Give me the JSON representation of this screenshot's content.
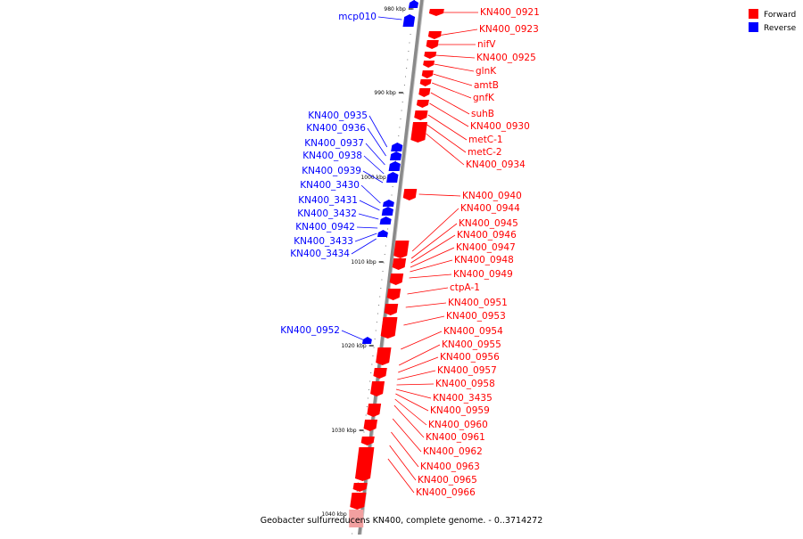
{
  "caption": "Geobacter sulfurreducens KN400, complete genome. - 0..3714272",
  "legend": [
    {
      "label": "Forward",
      "color": "#ff0000"
    },
    {
      "label": "Reverse",
      "color": "#0000ff"
    }
  ],
  "colors": {
    "forward": "#ff0000",
    "reverse": "#0000ff",
    "backbone": "#8a8a8a"
  },
  "ticks": [
    "980 kbp",
    "990 kbp",
    "1000 kbp",
    "1010 kbp",
    "1020 kbp",
    "1030 kbp",
    "1040 kbp"
  ],
  "forward_labels": [
    "KN400_0921",
    "KN400_0923",
    "nifV",
    "KN400_0925",
    "glnK",
    "amtB",
    "gnfK",
    "suhB",
    "KN400_0930",
    "metC-1",
    "metC-2",
    "KN400_0934",
    "KN400_0940",
    "KN400_0944",
    "KN400_0945",
    "KN400_0946",
    "KN400_0947",
    "KN400_0948",
    "KN400_0949",
    "ctpA-1",
    "KN400_0951",
    "KN400_0953",
    "KN400_0954",
    "KN400_0955",
    "KN400_0956",
    "KN400_0957",
    "KN400_0958",
    "KN400_3435",
    "KN400_0959",
    "KN400_0960",
    "KN400_0961",
    "KN400_0962",
    "KN400_0963",
    "KN400_0965",
    "KN400_0966"
  ],
  "reverse_labels": [
    "mcp010",
    "KN400_0935",
    "KN400_0936",
    "KN400_0937",
    "KN400_0938",
    "KN400_0939",
    "KN400_3430",
    "KN400_3431",
    "KN400_3432",
    "KN400_0942",
    "KN400_3433",
    "KN400_3434",
    "KN400_0952"
  ]
}
